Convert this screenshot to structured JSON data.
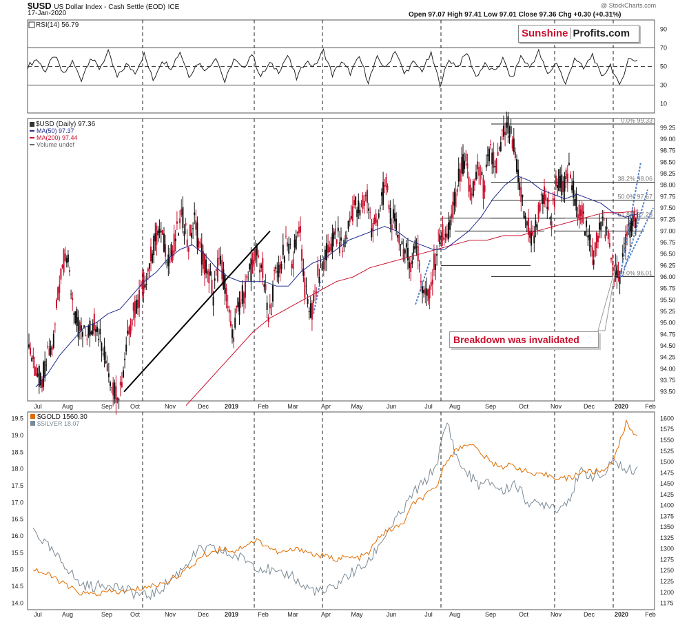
{
  "header": {
    "symbol": "$USD",
    "description": "US Dollar Index - Cash Settle (EOD)",
    "exchange": "ICE",
    "date": "17-Jan-2020",
    "ohlc": "Open 97.07  High 97.41  Low 97.01  Close 97.36  Chg +0.30 (+0.31%)",
    "credit": "@ StockCharts.com"
  },
  "logo": {
    "part1": "Sunshine",
    "part2": "Profits.com"
  },
  "annotation": "Breakdown was invalidated",
  "colors": {
    "price_up": "#111111",
    "price_down": "#c8102e",
    "ma50": "#1f2a8c",
    "ma200": "#c8102e",
    "gold": "#e06c00",
    "silver": "#7b8a96",
    "fib": "#5580c8"
  },
  "chart_data": [
    {
      "type": "line",
      "title": "RSI(14) 56.79",
      "y_ticks": [
        "90",
        "70",
        "50",
        "30",
        "10"
      ],
      "ylim": [
        0,
        100
      ],
      "levels": [
        70,
        50,
        30
      ],
      "series": [
        {
          "name": "RSI(14)",
          "values": [
            50,
            58,
            45,
            62,
            41,
            55,
            36,
            60,
            48,
            65,
            38,
            52,
            44,
            63,
            35,
            57,
            49,
            66,
            40,
            54,
            46,
            61,
            33,
            58,
            47,
            64,
            39,
            53,
            45,
            62,
            37,
            56,
            50,
            67,
            41,
            55,
            43,
            60,
            34,
            59,
            48,
            68,
            42,
            54,
            46,
            63,
            31,
            57,
            50,
            65,
            39,
            52,
            44,
            58,
            36,
            61,
            49,
            66,
            41,
            55,
            30,
            60,
            47,
            63,
            38,
            52,
            28,
            58,
            56.79
          ]
        }
      ]
    },
    {
      "type": "line",
      "title": "$USD (Daily) 97.36",
      "legend": [
        "MA(50) 97.37",
        "MA(200) 97.44",
        "Volume undef"
      ],
      "y_ticks": [
        "99.25",
        "99.00",
        "98.75",
        "98.50",
        "98.25",
        "98.00",
        "97.75",
        "97.50",
        "97.25",
        "97.00",
        "96.75",
        "96.50",
        "96.25",
        "96.00",
        "95.75",
        "95.50",
        "95.25",
        "95.00",
        "94.75",
        "94.50",
        "94.25",
        "94.00",
        "93.75",
        "93.50"
      ],
      "ylim": [
        93.3,
        99.45
      ],
      "x_labels": [
        "Jul",
        "Aug",
        "Sep",
        "Oct",
        "Nov",
        "Dec",
        "2019",
        "Feb",
        "Mar",
        "Apr",
        "May",
        "Jun",
        "Jul",
        "Aug",
        "Sep",
        "Oct",
        "Nov",
        "Dec",
        "2020",
        "Feb"
      ],
      "price_path": [
        94.5,
        94.0,
        93.7,
        94.2,
        94.6,
        95.9,
        96.6,
        95.6,
        94.9,
        94.7,
        94.9,
        95.1,
        94.4,
        94.0,
        93.5,
        93.6,
        94.8,
        95.2,
        95.6,
        96.0,
        96.5,
        97.0,
        96.7,
        96.4,
        96.9,
        97.3,
        96.8,
        97.2,
        96.5,
        96.2,
        95.6,
        96.4,
        95.8,
        94.6,
        95.3,
        95.7,
        96.1,
        96.5,
        96.2,
        95.0,
        96.0,
        96.3,
        96.7,
        96.4,
        97.2,
        95.6,
        95.2,
        96.0,
        96.3,
        96.7,
        96.9,
        96.6,
        97.1,
        97.6,
        97.4,
        97.8,
        96.9,
        97.5,
        98.0,
        97.3,
        97.0,
        96.6,
        96.3,
        96.8,
        95.8,
        95.5,
        96.3,
        97.0,
        96.8,
        97.4,
        98.2,
        98.6,
        97.6,
        98.4,
        97.9,
        98.7,
        98.3,
        99.0,
        99.3,
        98.7,
        97.8,
        97.2,
        96.8,
        97.4,
        97.8,
        97.2,
        98.2,
        97.9,
        98.3,
        97.6,
        97.4,
        96.8,
        96.5,
        97.2,
        97.0,
        96.2,
        96.0,
        96.6,
        97.2,
        97.36
      ],
      "ma50_path": [
        93.6,
        93.9,
        94.3,
        94.6,
        94.9,
        95.0,
        95.2,
        95.3,
        95.6,
        95.9,
        96.1,
        96.4,
        96.6,
        96.7,
        96.5,
        96.2,
        96.0,
        95.9,
        95.9,
        95.9,
        95.8,
        95.8,
        96.1,
        96.3,
        96.4,
        96.6,
        96.8,
        96.9,
        97.0,
        97.1,
        97.0,
        96.8,
        96.7,
        96.6,
        96.6,
        96.8,
        97.0,
        97.3,
        97.7,
        98.0,
        98.2,
        98.1,
        97.9,
        97.8,
        97.7,
        97.8,
        97.7,
        97.6,
        97.4,
        97.3,
        97.37
      ],
      "ma200_path": [
        93.2,
        93.6,
        94.0,
        94.4,
        94.8,
        95.1,
        95.3,
        95.5,
        95.7,
        95.9,
        96.0,
        96.2,
        96.3,
        96.4,
        96.5,
        96.6,
        96.7,
        96.8,
        96.8,
        96.9,
        96.9,
        97.0,
        97.1,
        97.2,
        97.3,
        97.4,
        97.4,
        97.44
      ],
      "fib_levels": [
        {
          "label": "0.0% 99.33",
          "value": 99.33
        },
        {
          "label": "38.2% 98.06",
          "value": 98.06
        },
        {
          "label": "50.0% 97.67",
          "value": 97.67
        },
        {
          "label": "61.8% 97.28",
          "value": 97.28
        },
        {
          "label": "100.0% 96.01",
          "value": 96.01
        }
      ],
      "support_line": {
        "start": {
          "x": "Sep",
          "y": 93.5
        },
        "end": {
          "x": "Feb",
          "y": 97.0
        }
      }
    },
    {
      "type": "line",
      "title": "$GOLD 1560.30",
      "left_axis_label": "$SILVER 18.07",
      "left_ticks": [
        "19.5",
        "19.0",
        "18.5",
        "18.0",
        "17.5",
        "17.0",
        "16.5",
        "16.0",
        "15.5",
        "15.0",
        "14.5",
        "14.0"
      ],
      "right_ticks": [
        "1600",
        "1575",
        "1550",
        "1525",
        "1500",
        "1475",
        "1450",
        "1425",
        "1400",
        "1375",
        "1350",
        "1325",
        "1300",
        "1275",
        "1250",
        "1225",
        "1200",
        "1175"
      ],
      "silver_ylim": [
        13.8,
        19.7
      ],
      "gold_ylim": [
        1160,
        1615
      ],
      "series": [
        {
          "name": "$GOLD",
          "values": [
            1255,
            1243,
            1232,
            1215,
            1200,
            1196,
            1197,
            1202,
            1200,
            1205,
            1212,
            1216,
            1225,
            1240,
            1256,
            1282,
            1293,
            1302,
            1294,
            1310,
            1320,
            1305,
            1290,
            1296,
            1300,
            1287,
            1283,
            1277,
            1280,
            1278,
            1290,
            1331,
            1345,
            1355,
            1405,
            1420,
            1440,
            1508,
            1530,
            1545,
            1520,
            1497,
            1490,
            1492,
            1478,
            1468,
            1470,
            1463,
            1462,
            1478,
            1477,
            1480,
            1510,
            1590,
            1560.3
          ]
        },
        {
          "name": "$SILVER",
          "values": [
            16.2,
            15.8,
            15.4,
            15.1,
            14.6,
            14.5,
            14.5,
            14.6,
            14.4,
            14.3,
            14.2,
            14.3,
            14.6,
            14.9,
            15.3,
            15.6,
            15.6,
            15.5,
            15.4,
            15.3,
            15.1,
            15.0,
            14.8,
            14.9,
            14.5,
            14.4,
            14.3,
            14.5,
            14.8,
            15.0,
            15.2,
            15.8,
            16.3,
            16.7,
            17.3,
            17.6,
            18.1,
            19.4,
            18.2,
            17.8,
            17.5,
            17.6,
            17.3,
            17.6,
            17.1,
            16.9,
            17.0,
            16.8,
            17.2,
            17.9,
            17.8,
            17.8,
            18.3,
            17.9,
            18.07
          ]
        }
      ]
    }
  ]
}
